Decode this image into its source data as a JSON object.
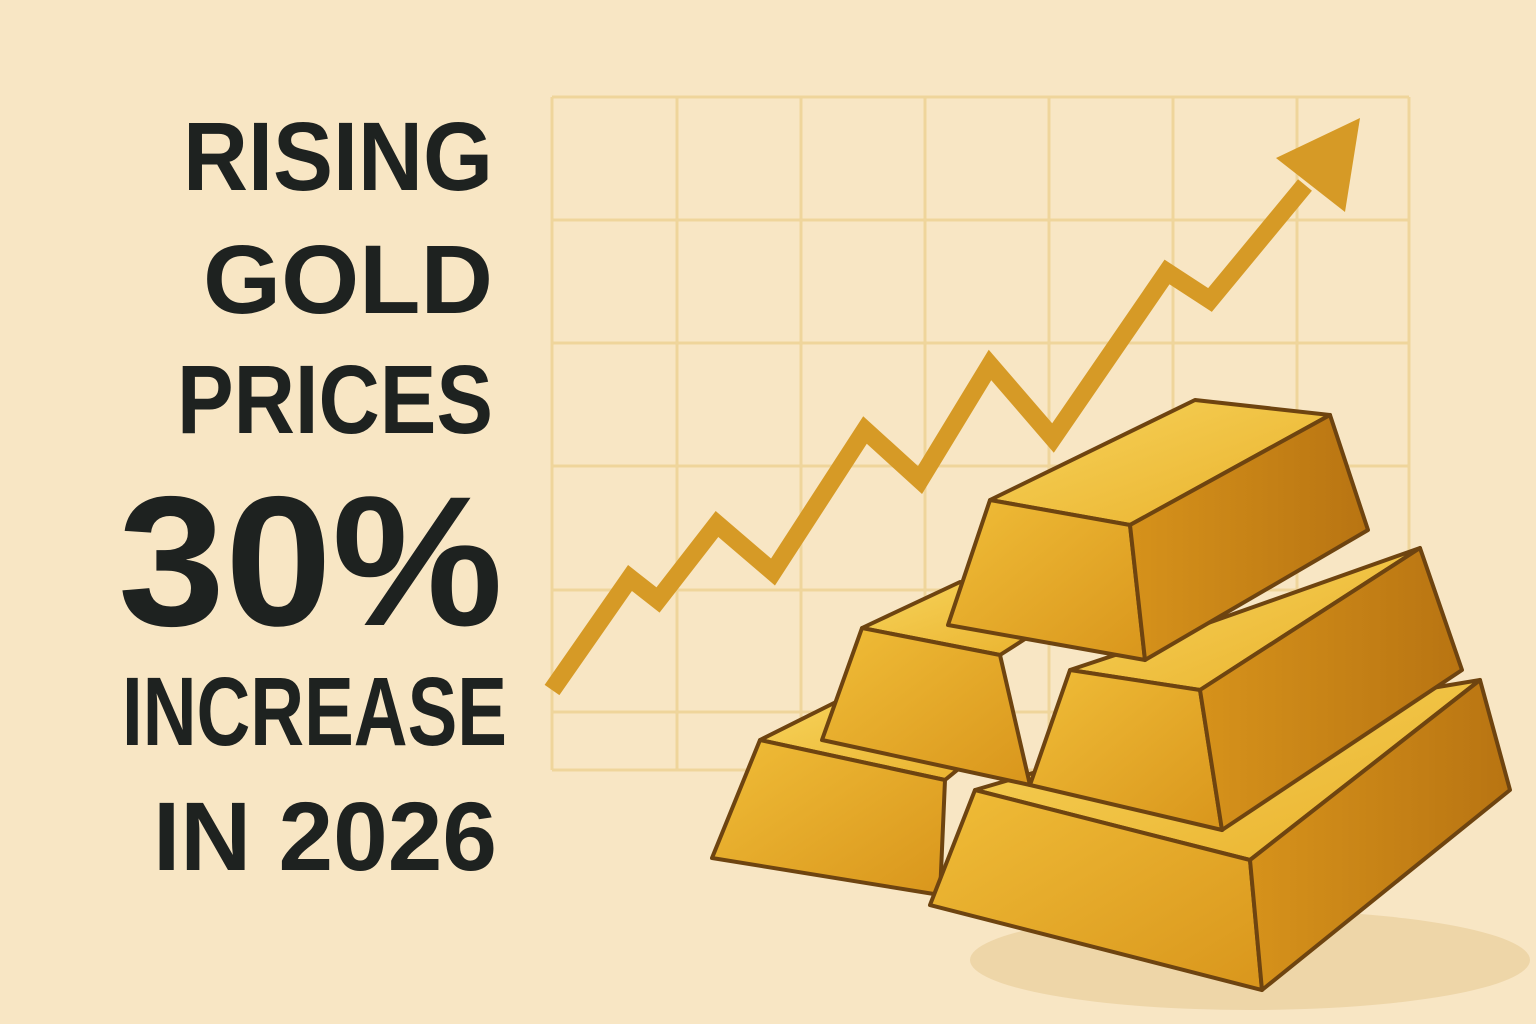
{
  "headline": {
    "lines": [
      "RISING",
      "GOLD",
      "PRICES",
      "30%",
      "INCREASE",
      "IN 2026"
    ]
  }
}
